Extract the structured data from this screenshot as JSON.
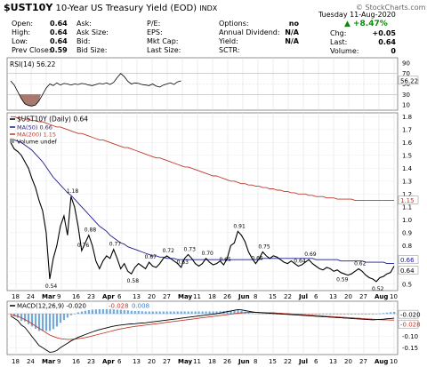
{
  "header": {
    "symbol": "$UST10Y",
    "name": "10-Year US Treasury Yield (EOD)",
    "exchange": "INDX",
    "copyright": "© StockCharts.com",
    "date": "Tuesday 11-Aug-2020",
    "quote": {
      "open_label": "Open:",
      "open": "0.64",
      "high_label": "High:",
      "high": "0.64",
      "low_label": "Low:",
      "low": "0.64",
      "prev_close_label": "Prev Close:",
      "prev_close": "0.59",
      "ask_label": "Ask:",
      "ask": "",
      "ask_size_label": "Ask Size:",
      "ask_size": "",
      "bid_label": "Bid:",
      "bid": "",
      "bid_size_label": "Bid Size:",
      "bid_size": "",
      "pe_label": "P/E:",
      "pe": "",
      "eps_label": "EPS:",
      "eps": "",
      "mkt_cap_label": "Mkt Cap:",
      "mkt_cap": "",
      "last_size_label": "Last Size:",
      "last_size": "",
      "options_label": "Options:",
      "options": "no",
      "annual_dividend_label": "Annual Dividend:",
      "annual_dividend": "N/A",
      "yield_label": "Yield:",
      "yield": "N/A",
      "sctr_label": "SCTR:",
      "sctr": "",
      "pct_change": "+8.47%",
      "chg_label": "Chg:",
      "chg": "+0.05",
      "last_label": "Last:",
      "last": "0.64",
      "volume_label": "Volume:",
      "volume": "0"
    }
  },
  "chart_data": [
    {
      "type": "line",
      "panel": "rsi",
      "legend": "RSI(14) 56.22",
      "yticks": [
        "90",
        "70",
        "50",
        "30",
        "10"
      ],
      "ylim": [
        0,
        100
      ],
      "bands": [
        30,
        70
      ],
      "last_value": "56.22",
      "values": [
        56,
        48,
        35,
        22,
        12,
        9,
        8,
        10,
        18,
        30,
        42,
        50,
        47,
        52,
        48,
        51,
        50,
        48,
        50,
        49,
        51,
        50,
        48,
        47,
        49,
        51,
        50,
        52,
        49,
        53,
        62,
        70,
        64,
        55,
        50,
        52,
        51,
        49,
        48,
        47,
        50,
        46,
        44,
        48,
        50,
        52,
        49,
        54,
        56
      ]
    },
    {
      "type": "line",
      "panel": "price",
      "legend": {
        "symbol": "$UST10Y (Daily) 0.64",
        "ma50": "MA(50) 0.66",
        "ma200": "MA(200) 1.15",
        "volume": "Volume undef"
      },
      "yticks": [
        "1.8",
        "1.7",
        "1.6",
        "1.5",
        "1.4",
        "1.3",
        "1.2",
        "1.1",
        "1.0",
        "0.9",
        "0.8",
        "0.7",
        "0.6",
        "0.5"
      ],
      "ylim": [
        0.45,
        1.83
      ],
      "x_tick_labels": [
        "18",
        "24",
        "Mar",
        "9",
        "16",
        "23",
        "Apr",
        "6",
        "13",
        "20",
        "27",
        "May",
        "11",
        "18",
        "26",
        "Jun",
        "8",
        "15",
        "22",
        "Jul",
        "6",
        "13",
        "20",
        "27",
        "Aug",
        "10"
      ],
      "tags": [
        {
          "text": "0.66",
          "value": 0.66
        },
        {
          "text": "0.64",
          "value": 0.64
        },
        {
          "text": "1.15",
          "value": 1.15
        }
      ],
      "annotations": [
        {
          "text": "0.54",
          "index": 11,
          "value": 0.54
        },
        {
          "text": "1.18",
          "index": 17,
          "value": 1.18
        },
        {
          "text": "0.76",
          "index": 20,
          "value": 0.76
        },
        {
          "text": "0.88",
          "index": 22,
          "value": 0.88
        },
        {
          "text": "0.77",
          "index": 29,
          "value": 0.77
        },
        {
          "text": "0.58",
          "index": 34,
          "value": 0.58
        },
        {
          "text": "0.67",
          "index": 39,
          "value": 0.67
        },
        {
          "text": "0.72",
          "index": 44,
          "value": 0.72
        },
        {
          "text": "0.63",
          "index": 48,
          "value": 0.63
        },
        {
          "text": "0.73",
          "index": 50,
          "value": 0.73
        },
        {
          "text": "0.70",
          "index": 55,
          "value": 0.7
        },
        {
          "text": "0.65",
          "index": 60,
          "value": 0.65
        },
        {
          "text": "0.91",
          "index": 64,
          "value": 0.91
        },
        {
          "text": "0.66",
          "index": 69,
          "value": 0.66
        },
        {
          "text": "0.75",
          "index": 71,
          "value": 0.75
        },
        {
          "text": "0.64",
          "index": 81,
          "value": 0.64
        },
        {
          "text": "0.69",
          "index": 84,
          "value": 0.69
        },
        {
          "text": "0.59",
          "index": 93,
          "value": 0.59
        },
        {
          "text": "0.62",
          "index": 98,
          "value": 0.62
        },
        {
          "text": "0.52",
          "index": 103,
          "value": 0.52
        }
      ],
      "series": [
        {
          "name": "$UST10Y",
          "color": "#000000",
          "values": [
            1.6,
            1.55,
            1.53,
            1.5,
            1.45,
            1.4,
            1.32,
            1.25,
            1.15,
            1.07,
            0.9,
            0.54,
            0.7,
            0.8,
            0.95,
            1.03,
            0.88,
            1.18,
            1.1,
            0.95,
            0.76,
            0.82,
            0.88,
            0.8,
            0.68,
            0.62,
            0.68,
            0.72,
            0.7,
            0.77,
            0.7,
            0.62,
            0.66,
            0.6,
            0.58,
            0.63,
            0.66,
            0.64,
            0.62,
            0.67,
            0.64,
            0.63,
            0.66,
            0.7,
            0.72,
            0.7,
            0.68,
            0.66,
            0.63,
            0.7,
            0.73,
            0.7,
            0.66,
            0.64,
            0.66,
            0.7,
            0.67,
            0.65,
            0.66,
            0.68,
            0.65,
            0.7,
            0.8,
            0.82,
            0.91,
            0.88,
            0.83,
            0.75,
            0.7,
            0.66,
            0.7,
            0.75,
            0.72,
            0.7,
            0.72,
            0.71,
            0.69,
            0.67,
            0.66,
            0.68,
            0.66,
            0.64,
            0.65,
            0.67,
            0.69,
            0.66,
            0.64,
            0.62,
            0.61,
            0.63,
            0.62,
            0.6,
            0.61,
            0.59,
            0.58,
            0.57,
            0.58,
            0.6,
            0.62,
            0.6,
            0.57,
            0.55,
            0.54,
            0.52,
            0.55,
            0.56,
            0.58,
            0.59,
            0.64
          ]
        },
        {
          "name": "MA(50)",
          "color": "#1a1a8c",
          "values": [
            1.63,
            1.62,
            1.61,
            1.6,
            1.58,
            1.56,
            1.54,
            1.51,
            1.48,
            1.45,
            1.41,
            1.37,
            1.33,
            1.3,
            1.27,
            1.24,
            1.21,
            1.19,
            1.16,
            1.13,
            1.1,
            1.07,
            1.04,
            1.01,
            0.98,
            0.95,
            0.93,
            0.91,
            0.88,
            0.86,
            0.84,
            0.82,
            0.81,
            0.79,
            0.78,
            0.77,
            0.76,
            0.75,
            0.74,
            0.73,
            0.72,
            0.72,
            0.71,
            0.71,
            0.7,
            0.7,
            0.7,
            0.69,
            0.69,
            0.69,
            0.69,
            0.69,
            0.69,
            0.69,
            0.69,
            0.69,
            0.69,
            0.69,
            0.69,
            0.69,
            0.69,
            0.69,
            0.69,
            0.69,
            0.69,
            0.69,
            0.69,
            0.69,
            0.69,
            0.69,
            0.69,
            0.7,
            0.7,
            0.7,
            0.7,
            0.7,
            0.7,
            0.7,
            0.7,
            0.7,
            0.7,
            0.7,
            0.7,
            0.7,
            0.7,
            0.7,
            0.69,
            0.69,
            0.69,
            0.69,
            0.69,
            0.69,
            0.69,
            0.68,
            0.68,
            0.68,
            0.68,
            0.68,
            0.68,
            0.68,
            0.67,
            0.67,
            0.67,
            0.67,
            0.67,
            0.67,
            0.66,
            0.66,
            0.66
          ]
        },
        {
          "name": "MA(200)",
          "color": "#c0392b",
          "values": [
            1.8,
            1.8,
            1.79,
            1.79,
            1.78,
            1.78,
            1.77,
            1.77,
            1.76,
            1.76,
            1.75,
            1.74,
            1.73,
            1.72,
            1.72,
            1.71,
            1.7,
            1.69,
            1.68,
            1.67,
            1.67,
            1.66,
            1.65,
            1.64,
            1.63,
            1.62,
            1.62,
            1.61,
            1.6,
            1.59,
            1.58,
            1.57,
            1.56,
            1.56,
            1.55,
            1.54,
            1.53,
            1.52,
            1.51,
            1.5,
            1.49,
            1.48,
            1.48,
            1.47,
            1.46,
            1.45,
            1.44,
            1.43,
            1.42,
            1.41,
            1.41,
            1.4,
            1.39,
            1.38,
            1.37,
            1.36,
            1.35,
            1.34,
            1.34,
            1.33,
            1.32,
            1.31,
            1.3,
            1.3,
            1.29,
            1.28,
            1.28,
            1.27,
            1.27,
            1.26,
            1.26,
            1.25,
            1.25,
            1.24,
            1.24,
            1.23,
            1.23,
            1.22,
            1.22,
            1.21,
            1.21,
            1.2,
            1.2,
            1.2,
            1.19,
            1.19,
            1.18,
            1.18,
            1.18,
            1.17,
            1.17,
            1.17,
            1.16,
            1.16,
            1.16,
            1.16,
            1.16,
            1.15,
            1.15,
            1.15,
            1.15,
            1.15,
            1.15,
            1.15,
            1.15,
            1.15,
            1.15,
            1.15,
            1.15
          ]
        }
      ]
    },
    {
      "type": "line",
      "panel": "macd",
      "legend": {
        "macd": "MACD(12,26,9) -0.020",
        "signal": "-0.028",
        "hist": "0.008"
      },
      "yticks": [
        "0.0",
        "-0.05",
        "-0.10",
        "-0.15"
      ],
      "ylim": [
        -0.18,
        0.055
      ],
      "tags": [
        {
          "text": "-0.020",
          "value": -0.02
        },
        {
          "text": "-0.028",
          "value": -0.028
        }
      ],
      "x_tick_labels": [
        "18",
        "24",
        "Mar",
        "9",
        "16",
        "23",
        "Apr",
        "6",
        "13",
        "20",
        "27",
        "May",
        "11",
        "18",
        "26",
        "Jun",
        "8",
        "15",
        "22",
        "Jul",
        "6",
        "13",
        "20",
        "27",
        "Aug",
        "10"
      ],
      "series": [
        {
          "name": "MACD",
          "color": "#000000",
          "values": [
            -0.01,
            -0.02,
            -0.03,
            -0.05,
            -0.06,
            -0.08,
            -0.1,
            -0.12,
            -0.14,
            -0.15,
            -0.16,
            -0.17,
            -0.168,
            -0.162,
            -0.15,
            -0.14,
            -0.13,
            -0.12,
            -0.112,
            -0.104,
            -0.098,
            -0.092,
            -0.086,
            -0.08,
            -0.075,
            -0.07,
            -0.066,
            -0.062,
            -0.058,
            -0.055,
            -0.052,
            -0.05,
            -0.048,
            -0.046,
            -0.045,
            -0.044,
            -0.042,
            -0.041,
            -0.04,
            -0.038,
            -0.036,
            -0.034,
            -0.032,
            -0.03,
            -0.028,
            -0.026,
            -0.024,
            -0.022,
            -0.02,
            -0.018,
            -0.016,
            -0.014,
            -0.012,
            -0.01,
            -0.008,
            -0.006,
            -0.004,
            -0.002,
            0.0,
            0.003,
            0.006,
            0.009,
            0.012,
            0.015,
            0.018,
            0.017,
            0.014,
            0.011,
            0.008,
            0.006,
            0.005,
            0.004,
            0.003,
            0.002,
            0.001,
            0.0,
            -0.001,
            -0.002,
            -0.003,
            -0.004,
            -0.005,
            -0.006,
            -0.007,
            -0.008,
            -0.009,
            -0.01,
            -0.011,
            -0.012,
            -0.013,
            -0.014,
            -0.015,
            -0.016,
            -0.017,
            -0.018,
            -0.019,
            -0.02,
            -0.021,
            -0.022,
            -0.023,
            -0.024,
            -0.025,
            -0.026,
            -0.027,
            -0.026,
            -0.025,
            -0.024,
            -0.022,
            -0.021,
            -0.02
          ]
        },
        {
          "name": "Signal",
          "color": "#c0392b",
          "values": [
            -0.005,
            -0.008,
            -0.012,
            -0.018,
            -0.026,
            -0.034,
            -0.044,
            -0.054,
            -0.064,
            -0.074,
            -0.084,
            -0.094,
            -0.1,
            -0.106,
            -0.11,
            -0.112,
            -0.113,
            -0.113,
            -0.112,
            -0.11,
            -0.108,
            -0.105,
            -0.102,
            -0.098,
            -0.094,
            -0.09,
            -0.086,
            -0.082,
            -0.078,
            -0.074,
            -0.07,
            -0.067,
            -0.064,
            -0.061,
            -0.058,
            -0.056,
            -0.054,
            -0.052,
            -0.05,
            -0.048,
            -0.046,
            -0.044,
            -0.042,
            -0.04,
            -0.038,
            -0.036,
            -0.034,
            -0.032,
            -0.03,
            -0.028,
            -0.026,
            -0.024,
            -0.022,
            -0.02,
            -0.018,
            -0.016,
            -0.014,
            -0.012,
            -0.01,
            -0.008,
            -0.006,
            -0.004,
            -0.002,
            0.0,
            0.002,
            0.004,
            0.005,
            0.006,
            0.006,
            0.006,
            0.006,
            0.005,
            0.005,
            0.004,
            0.004,
            0.003,
            0.002,
            0.001,
            0.0,
            -0.001,
            -0.002,
            -0.003,
            -0.004,
            -0.005,
            -0.006,
            -0.007,
            -0.008,
            -0.009,
            -0.01,
            -0.011,
            -0.012,
            -0.013,
            -0.014,
            -0.015,
            -0.016,
            -0.017,
            -0.018,
            -0.019,
            -0.02,
            -0.021,
            -0.022,
            -0.023,
            -0.024,
            -0.025,
            -0.026,
            -0.027,
            -0.027,
            -0.028,
            -0.028
          ]
        }
      ]
    }
  ]
}
